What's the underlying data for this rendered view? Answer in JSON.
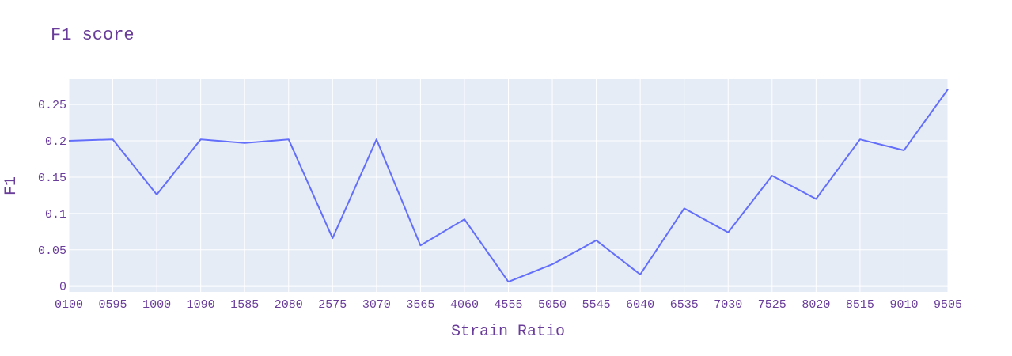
{
  "chart_data": {
    "type": "line",
    "title": "F1 score",
    "xlabel": "Strain Ratio",
    "ylabel": "F1",
    "categories": [
      "0100",
      "0595",
      "1000",
      "1090",
      "1585",
      "2080",
      "2575",
      "3070",
      "3565",
      "4060",
      "4555",
      "5050",
      "5545",
      "6040",
      "6535",
      "7030",
      "7525",
      "8020",
      "8515",
      "9010",
      "9505"
    ],
    "series": [
      {
        "values": [
          0.2,
          0.202,
          0.126,
          0.202,
          0.197,
          0.202,
          0.066,
          0.202,
          0.056,
          0.092,
          0.006,
          0.03,
          0.063,
          0.016,
          0.107,
          0.074,
          0.152,
          0.12,
          0.202,
          0.187,
          0.271
        ]
      }
    ],
    "ylim": [
      -0.008,
      0.285
    ],
    "yticks": [
      0,
      0.05,
      0.1,
      0.15,
      0.2,
      0.25
    ],
    "ytick_labels": [
      "0",
      "0.05",
      "0.1",
      "0.15",
      "0.2",
      "0.25"
    ],
    "grid": true,
    "colors": {
      "plot_background": "#e5ecf6",
      "grid": "#ffffff",
      "line": "#636efa",
      "text": "#6a3d9a"
    }
  }
}
